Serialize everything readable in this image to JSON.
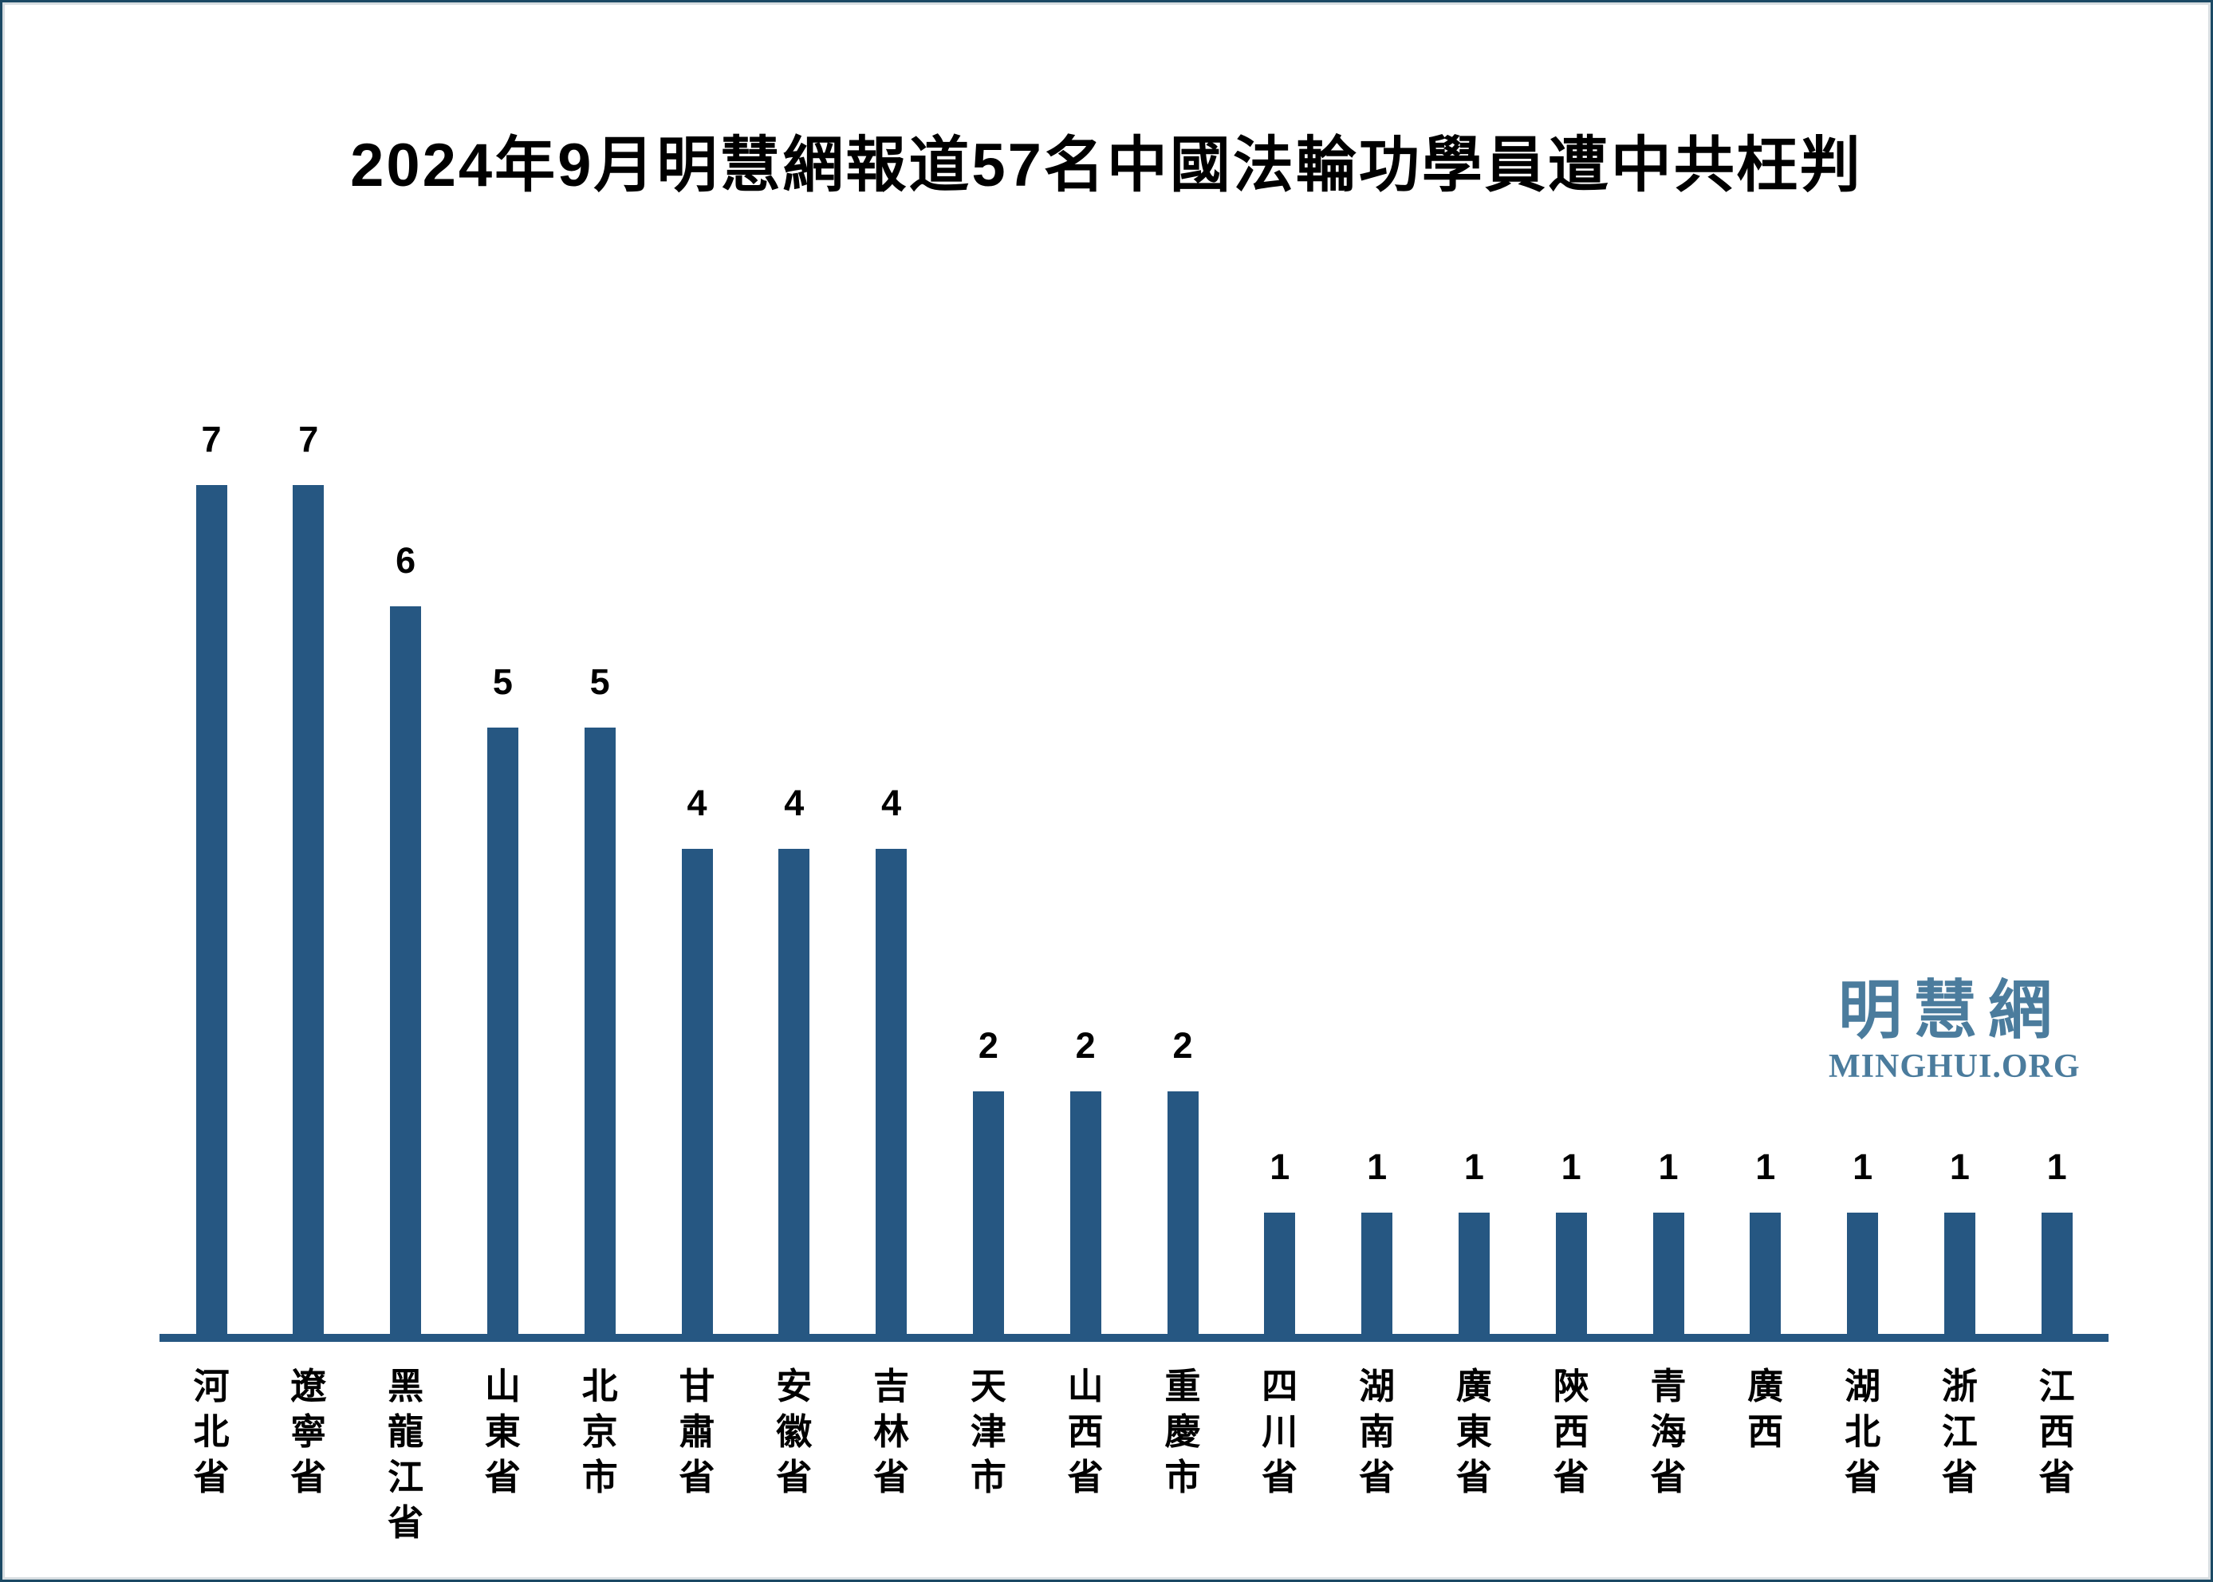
{
  "chart_data": {
    "type": "bar",
    "title": "2024年9月明慧網報道57名中國法輪功學員遭中共枉判",
    "categories": [
      "河北省",
      "遼寧省",
      "黑龍江省",
      "山東省",
      "北京市",
      "甘肅省",
      "安徽省",
      "吉林省",
      "天津市",
      "山西省",
      "重慶市",
      "四川省",
      "湖南省",
      "廣東省",
      "陝西省",
      "青海省",
      "廣西",
      "湖北省",
      "浙江省",
      "江西省"
    ],
    "values": [
      7,
      7,
      6,
      5,
      5,
      4,
      4,
      4,
      2,
      2,
      2,
      1,
      1,
      1,
      1,
      1,
      1,
      1,
      1,
      1
    ],
    "total_reported": 57,
    "ylim": [
      0,
      7
    ],
    "xlabel": "",
    "ylabel": "",
    "grid": false,
    "legend_position": "none",
    "value_labels_shown": true,
    "bar_color": "#265782",
    "axis_color": "#265782",
    "label_orientation": "vertical-stacked"
  },
  "watermark": {
    "line1": "明慧網",
    "line2": "MINGHUI.ORG",
    "color": "#4b7c9d"
  }
}
